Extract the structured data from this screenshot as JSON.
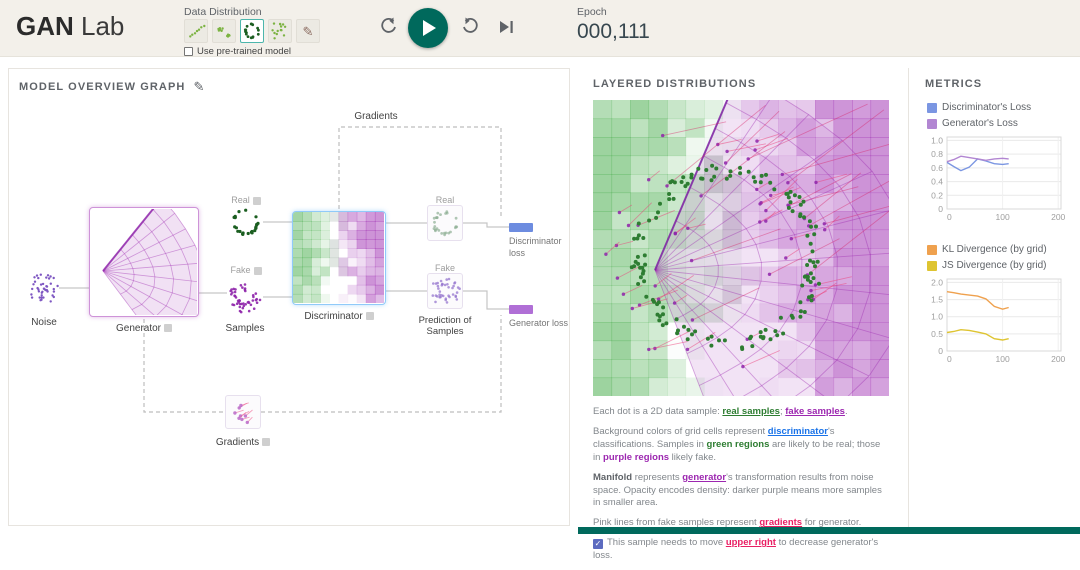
{
  "header": {
    "brand_bold": "GAN",
    "brand_light": "Lab",
    "data_distribution_label": "Data Distribution",
    "distributions": [
      {
        "name": "line-distribution",
        "selected": false
      },
      {
        "name": "two-clusters-distribution",
        "selected": false
      },
      {
        "name": "ring-distribution",
        "selected": true
      },
      {
        "name": "scatter-distribution",
        "selected": false
      },
      {
        "name": "draw-your-own-distribution",
        "selected": false
      }
    ],
    "pretrained_label": "Use pre-trained model",
    "controls": [
      {
        "name": "reset",
        "icon": "reset-icon"
      },
      {
        "name": "play",
        "icon": "play-icon"
      },
      {
        "name": "step",
        "icon": "step-icon"
      },
      {
        "name": "next",
        "icon": "skip-next-icon"
      }
    ],
    "epoch_label": "Epoch",
    "epoch_value": "000,111"
  },
  "overview": {
    "title": "MODEL OVERVIEW GRAPH",
    "labels": {
      "noise": "Noise",
      "generator": "Generator",
      "samples": "Samples",
      "real_input": "Real",
      "fake_input": "Fake",
      "discriminator": "Discriminator",
      "real_output": "Real",
      "fake_output": "Fake",
      "prediction_line1": "Prediction of",
      "prediction_line2": "Samples",
      "gradients_top": "Gradients",
      "gradients_bottom": "Gradients",
      "discriminator_loss": "Discriminator loss",
      "generator_loss": "Generator loss"
    },
    "loss_colors": {
      "discriminator": "#6d8ce0",
      "generator": "#b06fd6"
    }
  },
  "layered": {
    "title": "LAYERED DISTRIBUTIONS",
    "captions": [
      [
        {
          "t": "Each dot is a 2D data sample: "
        },
        {
          "t": "real samples",
          "s": "glink",
          "n": "real-samples-link"
        },
        {
          "t": "; "
        },
        {
          "t": "fake samples",
          "s": "plink",
          "n": "fake-samples-link"
        },
        {
          "t": "."
        }
      ],
      [
        {
          "t": "Background colors of grid cells represent "
        },
        {
          "t": "discriminator",
          "s": "blink",
          "n": "discriminator-link"
        },
        {
          "t": "'s classifications. Samples in "
        },
        {
          "t": "green regions",
          "s": "gtext"
        },
        {
          "t": " are likely to be real; those in "
        },
        {
          "t": "purple regions",
          "s": "ptext"
        },
        {
          "t": " likely fake."
        }
      ],
      [
        {
          "t": "Manifold",
          "s": "strong"
        },
        {
          "t": " represents "
        },
        {
          "t": "generator",
          "s": "plink",
          "n": "generator-link"
        },
        {
          "t": "'s transformation results from noise space. Opacity encodes density: darker purple means more samples in smaller area."
        }
      ],
      [
        {
          "t": "Pink lines from fake samples represent "
        },
        {
          "t": "gradients",
          "s": "klink",
          "n": "gradients-link"
        },
        {
          "t": " for generator."
        }
      ],
      [
        {
          "t": "This sample needs to move "
        },
        {
          "t": "upper right",
          "s": "klink",
          "n": "upper-right-link"
        },
        {
          "t": " to decrease generator's loss."
        }
      ]
    ]
  },
  "metrics": {
    "title": "METRICS",
    "charts": [
      {
        "type": "line",
        "legend": [
          {
            "label": "Discriminator's Loss",
            "color": "#7b96e2"
          },
          {
            "label": "Generator's Loss",
            "color": "#b286d2"
          }
        ],
        "xlim": [
          0,
          205
        ],
        "ylim": [
          0,
          1.05
        ],
        "yticks": [
          "1.0",
          "0.8",
          "0.6",
          "0.4",
          "0.2",
          "0"
        ],
        "ytick_vals": [
          1.0,
          0.8,
          0.6,
          0.4,
          0.2,
          0
        ],
        "xticks": [
          "0",
          "100",
          "200"
        ],
        "xtick_vals": [
          0,
          100,
          200
        ],
        "x": [
          0,
          12,
          25,
          40,
          55,
          70,
          85,
          100,
          111
        ],
        "series": [
          {
            "name": "Discriminator's Loss",
            "color": "#7b96e2",
            "values": [
              0.68,
              0.62,
              0.56,
              0.61,
              0.73,
              0.7,
              0.66,
              0.65,
              0.66
            ]
          },
          {
            "name": "Generator's Loss",
            "color": "#b286d2",
            "values": [
              0.69,
              0.72,
              0.77,
              0.75,
              0.73,
              0.71,
              0.73,
              0.74,
              0.73
            ]
          }
        ]
      },
      {
        "type": "line",
        "legend": [
          {
            "label": "KL Divergence (by grid)",
            "color": "#efa14e"
          },
          {
            "label": "JS Divergence (by grid)",
            "color": "#dec431"
          }
        ],
        "xlim": [
          0,
          205
        ],
        "ylim": [
          0,
          2.1
        ],
        "yticks": [
          "2.0",
          "1.5",
          "1.0",
          "0.5",
          "0"
        ],
        "ytick_vals": [
          2.0,
          1.5,
          1.0,
          0.5,
          0
        ],
        "xticks": [
          "0",
          "100",
          "200"
        ],
        "xtick_vals": [
          0,
          100,
          200
        ],
        "x": [
          0,
          12,
          25,
          40,
          55,
          70,
          85,
          100,
          111
        ],
        "series": [
          {
            "name": "KL Divergence (by grid)",
            "color": "#efa14e",
            "values": [
              1.73,
              1.7,
              1.66,
              1.63,
              1.6,
              1.52,
              1.3,
              1.22,
              1.27
            ]
          },
          {
            "name": "JS Divergence (by grid)",
            "color": "#dec431",
            "values": [
              0.54,
              0.57,
              0.62,
              0.6,
              0.55,
              0.5,
              0.36,
              0.32,
              0.36
            ]
          }
        ]
      }
    ]
  }
}
